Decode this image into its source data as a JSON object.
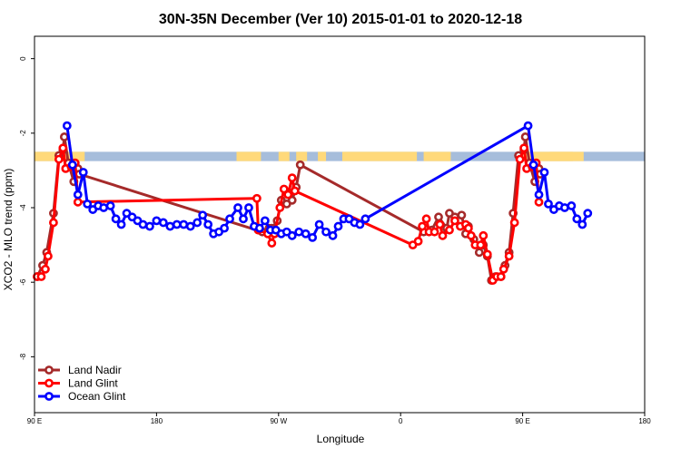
{
  "chart_data": {
    "type": "line",
    "title": "30N-35N December (Ver 10)   2015-01-01 to 2020-12-18",
    "xlabel": "Longitude",
    "ylabel": "XCO2 - MLO trend (ppm)",
    "xlim": [
      90,
      450
    ],
    "ylim": [
      -9.5,
      0.6
    ],
    "x_ticks": [
      {
        "value": 90,
        "label": "90 E"
      },
      {
        "value": 180,
        "label": "180"
      },
      {
        "value": 270,
        "label": "90 W"
      },
      {
        "value": 360,
        "label": "0"
      },
      {
        "value": 450,
        "label": "90 E"
      },
      {
        "value": 540,
        "label": "180"
      }
    ],
    "y_ticks": [
      {
        "value": 0,
        "label": "0"
      },
      {
        "value": -2,
        "label": "-2"
      },
      {
        "value": -4,
        "label": "-4"
      },
      {
        "value": -6,
        "label": "-6"
      },
      {
        "value": -8,
        "label": "-8"
      }
    ],
    "x_display_range": [
      90,
      540
    ],
    "land_band": {
      "y_range": [
        -2.75,
        -2.5
      ],
      "ocean_color": "#a6bddb",
      "land_color": "#ffd97a",
      "land_segments": [
        [
          90,
          127
        ],
        [
          239,
          257
        ],
        [
          270,
          278
        ],
        [
          283,
          291
        ],
        [
          299,
          305
        ],
        [
          317,
          372
        ],
        [
          377,
          397
        ],
        [
          470,
          495
        ]
      ]
    },
    "legend_position": "bottom-left",
    "series": [
      {
        "name": "Land Nadir",
        "color": "#a52a2a",
        "points": [
          [
            92,
            -5.85
          ],
          [
            96,
            -5.55
          ],
          [
            99,
            -5.2
          ],
          [
            104,
            -4.15
          ],
          [
            108,
            -2.6
          ],
          [
            111,
            -2.45
          ],
          [
            112,
            -2.1
          ],
          [
            115,
            -2.8
          ],
          [
            119,
            -3.3
          ],
          [
            122,
            -2.95
          ],
          [
            123,
            -3.1
          ],
          [
            258,
            -4.65
          ],
          [
            263,
            -4.55
          ],
          [
            265,
            -4.55
          ],
          [
            269,
            -4.35
          ],
          [
            272,
            -3.8
          ],
          [
            276,
            -3.9
          ],
          [
            280,
            -3.8
          ],
          [
            283,
            -3.45
          ],
          [
            286,
            -2.85
          ],
          [
            377,
            -4.65
          ],
          [
            383,
            -4.6
          ],
          [
            388,
            -4.25
          ],
          [
            394,
            -4.55
          ],
          [
            396,
            -4.15
          ],
          [
            400,
            -4.25
          ],
          [
            405,
            -4.2
          ],
          [
            408,
            -4.7
          ],
          [
            410,
            -4.5
          ],
          [
            414,
            -4.85
          ],
          [
            418,
            -5.2
          ],
          [
            421,
            -5.0
          ],
          [
            424,
            -5.3
          ],
          [
            427,
            -5.95
          ],
          [
            430,
            -5.85
          ],
          [
            434,
            -5.85
          ],
          [
            437,
            -5.55
          ],
          [
            440,
            -5.2
          ],
          [
            443,
            -4.15
          ],
          [
            447,
            -2.6
          ],
          [
            451,
            -2.45
          ],
          [
            452,
            -2.1
          ],
          [
            455,
            -2.8
          ],
          [
            459,
            -3.3
          ],
          [
            462,
            -2.95
          ],
          [
            463,
            -3.1
          ]
        ]
      },
      {
        "name": "Land Glint",
        "color": "#ff0000",
        "points": [
          [
            92,
            -5.85
          ],
          [
            95,
            -5.85
          ],
          [
            98,
            -5.65
          ],
          [
            100,
            -5.3
          ],
          [
            104,
            -4.4
          ],
          [
            108,
            -2.7
          ],
          [
            111,
            -2.4
          ],
          [
            113,
            -2.95
          ],
          [
            117,
            -2.9
          ],
          [
            120,
            -2.8
          ],
          [
            122,
            -3.85
          ],
          [
            254,
            -3.75
          ],
          [
            255,
            -4.6
          ],
          [
            262,
            -4.7
          ],
          [
            265,
            -4.95
          ],
          [
            267,
            -4.7
          ],
          [
            271,
            -4.0
          ],
          [
            274,
            -3.5
          ],
          [
            277,
            -3.65
          ],
          [
            280,
            -3.2
          ],
          [
            282,
            -3.55
          ],
          [
            369,
            -5.0
          ],
          [
            373,
            -4.9
          ],
          [
            376,
            -4.5
          ],
          [
            379,
            -4.3
          ],
          [
            381,
            -4.65
          ],
          [
            385,
            -4.65
          ],
          [
            389,
            -4.45
          ],
          [
            391,
            -4.75
          ],
          [
            396,
            -4.6
          ],
          [
            400,
            -4.35
          ],
          [
            404,
            -4.5
          ],
          [
            408,
            -4.45
          ],
          [
            410,
            -4.55
          ],
          [
            412,
            -4.75
          ],
          [
            415,
            -5.0
          ],
          [
            419,
            -5.0
          ],
          [
            421,
            -4.75
          ],
          [
            424,
            -5.25
          ],
          [
            428,
            -5.95
          ],
          [
            431,
            -5.85
          ],
          [
            434,
            -5.85
          ],
          [
            436,
            -5.65
          ],
          [
            440,
            -5.3
          ],
          [
            444,
            -4.4
          ],
          [
            448,
            -2.7
          ],
          [
            451,
            -2.4
          ],
          [
            453,
            -2.95
          ],
          [
            457,
            -2.9
          ],
          [
            460,
            -2.8
          ],
          [
            462,
            -3.85
          ]
        ]
      },
      {
        "name": "Ocean Glint",
        "color": "#0000ff",
        "points": [
          [
            114,
            -1.8
          ],
          [
            118,
            -2.85
          ],
          [
            122,
            -3.65
          ],
          [
            126,
            -3.05
          ],
          [
            129,
            -3.9
          ],
          [
            133,
            -4.05
          ],
          [
            137,
            -3.95
          ],
          [
            141,
            -4.0
          ],
          [
            146,
            -3.95
          ],
          [
            150,
            -4.3
          ],
          [
            154,
            -4.45
          ],
          [
            158,
            -4.15
          ],
          [
            162,
            -4.25
          ],
          [
            166,
            -4.35
          ],
          [
            170,
            -4.45
          ],
          [
            175,
            -4.5
          ],
          [
            180,
            -4.35
          ],
          [
            185,
            -4.4
          ],
          [
            190,
            -4.5
          ],
          [
            195,
            -4.45
          ],
          [
            200,
            -4.45
          ],
          [
            205,
            -4.5
          ],
          [
            210,
            -4.4
          ],
          [
            214,
            -4.2
          ],
          [
            218,
            -4.45
          ],
          [
            222,
            -4.7
          ],
          [
            226,
            -4.65
          ],
          [
            230,
            -4.55
          ],
          [
            234,
            -4.3
          ],
          [
            240,
            -4.0
          ],
          [
            244,
            -4.3
          ],
          [
            248,
            -4.0
          ],
          [
            252,
            -4.5
          ],
          [
            256,
            -4.55
          ],
          [
            260,
            -4.35
          ],
          [
            264,
            -4.6
          ],
          [
            268,
            -4.6
          ],
          [
            272,
            -4.7
          ],
          [
            276,
            -4.65
          ],
          [
            280,
            -4.75
          ],
          [
            285,
            -4.65
          ],
          [
            290,
            -4.7
          ],
          [
            295,
            -4.8
          ],
          [
            300,
            -4.45
          ],
          [
            305,
            -4.65
          ],
          [
            310,
            -4.75
          ],
          [
            314,
            -4.5
          ],
          [
            318,
            -4.3
          ],
          [
            322,
            -4.3
          ],
          [
            326,
            -4.4
          ],
          [
            330,
            -4.45
          ],
          [
            334,
            -4.3
          ],
          [
            454,
            -1.8
          ],
          [
            458,
            -2.85
          ],
          [
            462,
            -3.65
          ],
          [
            466,
            -3.05
          ],
          [
            469,
            -3.9
          ],
          [
            473,
            -4.05
          ],
          [
            477,
            -3.95
          ],
          [
            481,
            -4.0
          ],
          [
            486,
            -3.95
          ],
          [
            490,
            -4.3
          ],
          [
            494,
            -4.45
          ],
          [
            498,
            -4.15
          ]
        ]
      }
    ]
  }
}
